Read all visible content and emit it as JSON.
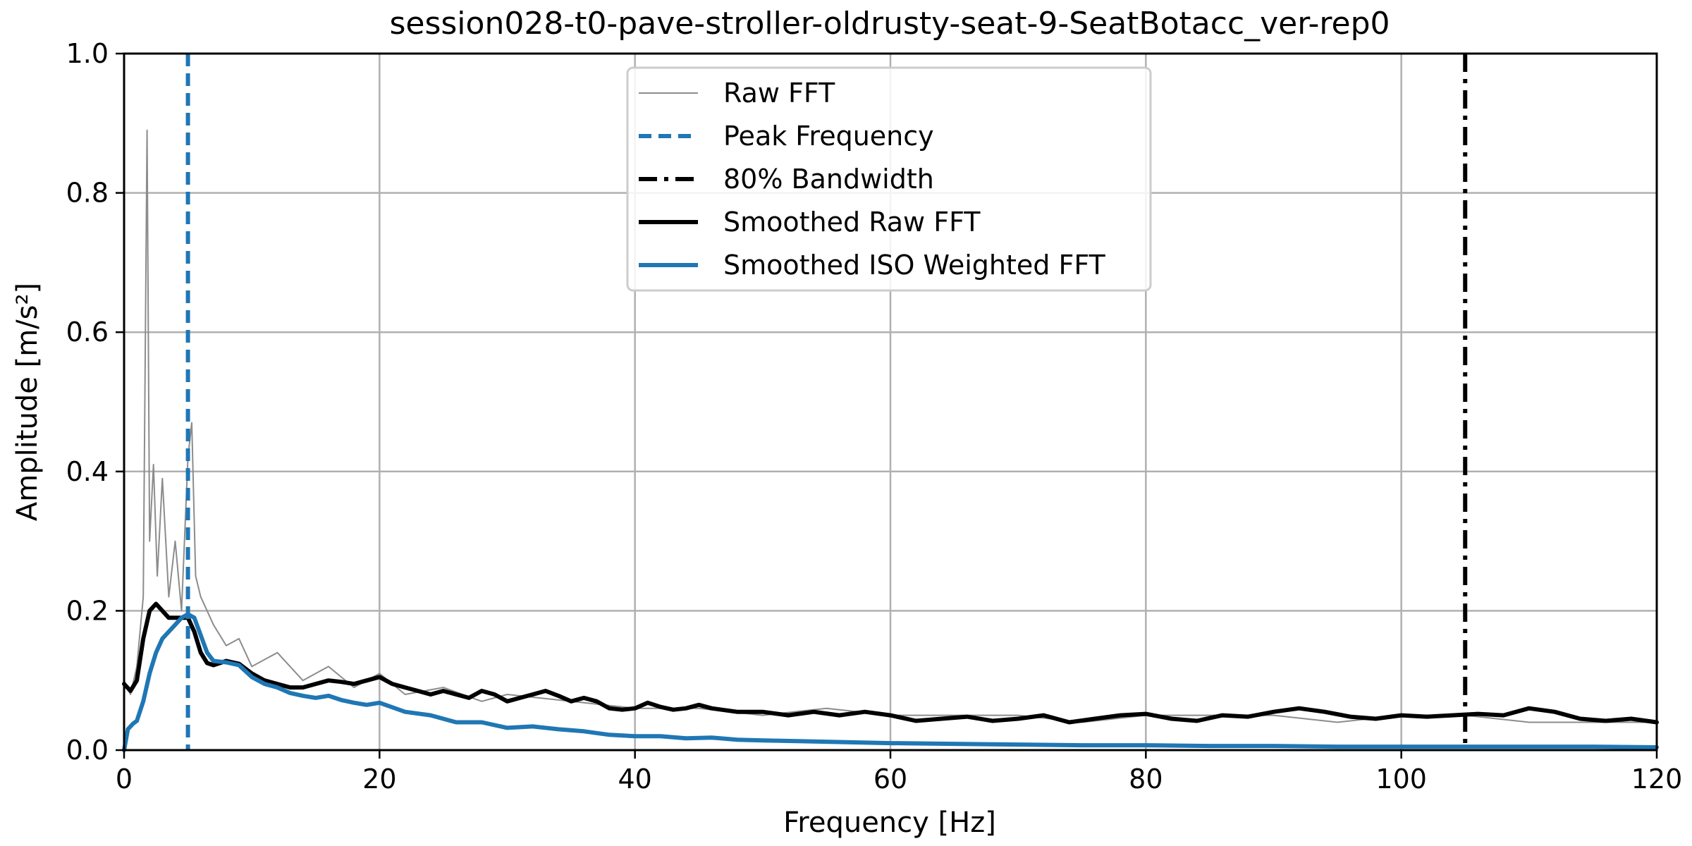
{
  "chart_data": {
    "type": "line",
    "title": "session028-t0-pave-stroller-oldrusty-seat-9-SeatBotacc_ver-rep0",
    "xlabel": "Frequency [Hz]",
    "ylabel": "Amplitude [m/s²]",
    "xlim": [
      0,
      120
    ],
    "ylim": [
      0,
      1.0
    ],
    "xticks": [
      0,
      20,
      40,
      60,
      80,
      100,
      120
    ],
    "yticks": [
      0.0,
      0.2,
      0.4,
      0.6,
      0.8,
      1.0
    ],
    "xtick_labels": [
      "0",
      "20",
      "40",
      "60",
      "80",
      "100",
      "120"
    ],
    "ytick_labels": [
      "0.0",
      "0.2",
      "0.4",
      "0.6",
      "0.8",
      "1.0"
    ],
    "grid": true,
    "legend_position": "top-center",
    "peak_frequency_hz": 5.0,
    "bandwidth_80_hz": 105.0,
    "series": [
      {
        "name": "Raw FFT",
        "style": "thin-line",
        "color": "#8c8c8c",
        "x": [
          0,
          0.5,
          1,
          1.5,
          1.8,
          2,
          2.3,
          2.6,
          3,
          3.5,
          4,
          4.5,
          5,
          5.3,
          5.6,
          6,
          7,
          8,
          9,
          10,
          12,
          14,
          16,
          18,
          20,
          22,
          25,
          28,
          30,
          35,
          40,
          45,
          50,
          55,
          60,
          65,
          70,
          75,
          80,
          85,
          90,
          95,
          100,
          105,
          110,
          115,
          120
        ],
        "y": [
          0.1,
          0.08,
          0.12,
          0.22,
          0.89,
          0.3,
          0.41,
          0.25,
          0.39,
          0.22,
          0.3,
          0.2,
          0.42,
          0.47,
          0.25,
          0.22,
          0.18,
          0.15,
          0.16,
          0.12,
          0.14,
          0.1,
          0.12,
          0.09,
          0.11,
          0.08,
          0.09,
          0.07,
          0.08,
          0.07,
          0.06,
          0.06,
          0.05,
          0.06,
          0.05,
          0.05,
          0.05,
          0.04,
          0.05,
          0.05,
          0.05,
          0.04,
          0.05,
          0.05,
          0.04,
          0.04,
          0.04
        ]
      },
      {
        "name": "Smoothed Raw FFT",
        "style": "thick-line",
        "color": "#000000",
        "x": [
          0,
          0.5,
          1,
          1.5,
          2,
          2.5,
          3,
          3.5,
          4,
          4.5,
          5,
          5.5,
          6,
          6.5,
          7,
          8,
          9,
          10,
          11,
          12,
          13,
          14,
          15,
          16,
          17,
          18,
          19,
          20,
          21,
          22,
          23,
          24,
          25,
          26,
          27,
          28,
          29,
          30,
          31,
          32,
          33,
          34,
          35,
          36,
          37,
          38,
          39,
          40,
          41,
          42,
          43,
          44,
          45,
          46,
          48,
          50,
          52,
          54,
          56,
          58,
          60,
          62,
          64,
          66,
          68,
          70,
          72,
          74,
          76,
          78,
          80,
          82,
          84,
          86,
          88,
          90,
          92,
          94,
          96,
          98,
          100,
          102,
          104,
          106,
          108,
          110,
          112,
          114,
          116,
          118,
          120
        ],
        "y": [
          0.095,
          0.085,
          0.1,
          0.16,
          0.2,
          0.21,
          0.2,
          0.19,
          0.19,
          0.19,
          0.19,
          0.17,
          0.14,
          0.125,
          0.122,
          0.128,
          0.124,
          0.11,
          0.1,
          0.095,
          0.09,
          0.09,
          0.095,
          0.1,
          0.098,
          0.095,
          0.1,
          0.105,
          0.095,
          0.09,
          0.085,
          0.08,
          0.085,
          0.08,
          0.075,
          0.085,
          0.08,
          0.07,
          0.075,
          0.08,
          0.085,
          0.078,
          0.07,
          0.075,
          0.07,
          0.06,
          0.058,
          0.06,
          0.068,
          0.062,
          0.058,
          0.06,
          0.065,
          0.06,
          0.055,
          0.055,
          0.05,
          0.055,
          0.05,
          0.055,
          0.05,
          0.042,
          0.045,
          0.048,
          0.042,
          0.045,
          0.05,
          0.04,
          0.045,
          0.05,
          0.052,
          0.045,
          0.042,
          0.05,
          0.048,
          0.055,
          0.06,
          0.055,
          0.048,
          0.045,
          0.05,
          0.048,
          0.05,
          0.052,
          0.05,
          0.06,
          0.055,
          0.045,
          0.042,
          0.045,
          0.04
        ]
      },
      {
        "name": "Smoothed ISO Weighted FFT",
        "style": "thick-line",
        "color": "#1f77b4",
        "x": [
          0,
          0.3,
          0.7,
          1,
          1.5,
          2,
          2.5,
          3,
          3.5,
          4,
          4.5,
          5,
          5.5,
          6,
          6.5,
          7,
          8,
          9,
          10,
          11,
          12,
          13,
          14,
          15,
          16,
          17,
          18,
          19,
          20,
          22,
          24,
          26,
          28,
          30,
          32,
          34,
          36,
          38,
          40,
          42,
          44,
          46,
          48,
          50,
          55,
          60,
          65,
          70,
          75,
          80,
          85,
          90,
          95,
          100,
          105,
          110,
          115,
          120
        ],
        "y": [
          0.0,
          0.03,
          0.038,
          0.042,
          0.07,
          0.11,
          0.14,
          0.16,
          0.17,
          0.18,
          0.19,
          0.195,
          0.19,
          0.165,
          0.14,
          0.128,
          0.126,
          0.122,
          0.105,
          0.095,
          0.09,
          0.082,
          0.078,
          0.075,
          0.078,
          0.072,
          0.068,
          0.065,
          0.068,
          0.055,
          0.05,
          0.04,
          0.04,
          0.032,
          0.034,
          0.03,
          0.027,
          0.022,
          0.02,
          0.02,
          0.017,
          0.018,
          0.015,
          0.014,
          0.012,
          0.01,
          0.009,
          0.008,
          0.007,
          0.007,
          0.006,
          0.006,
          0.005,
          0.005,
          0.005,
          0.005,
          0.005,
          0.004
        ]
      }
    ],
    "vlines": [
      {
        "name": "Peak Frequency",
        "x": 5.0,
        "color": "#1f77b4",
        "style": "dashed"
      },
      {
        "name": "80% Bandwidth",
        "x": 105.0,
        "color": "#000000",
        "style": "dashdot"
      }
    ],
    "legend": [
      {
        "label": "Raw FFT",
        "color": "#8c8c8c",
        "style": "thin-line"
      },
      {
        "label": "Peak Frequency",
        "color": "#1f77b4",
        "style": "dashed"
      },
      {
        "label": "80% Bandwidth",
        "color": "#000000",
        "style": "dashdot"
      },
      {
        "label": "Smoothed Raw FFT",
        "color": "#000000",
        "style": "thick-line"
      },
      {
        "label": "Smoothed ISO Weighted FFT",
        "color": "#1f77b4",
        "style": "thick-line"
      }
    ]
  }
}
